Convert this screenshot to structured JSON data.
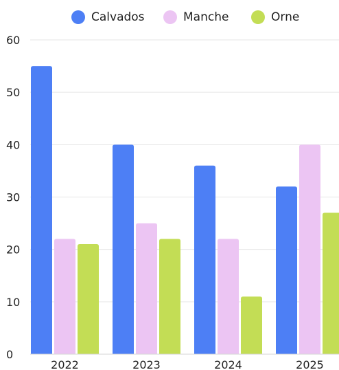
{
  "chart_data": {
    "type": "bar",
    "title": "",
    "xlabel": "",
    "ylabel": "",
    "categories": [
      "2022",
      "2023",
      "2024",
      "2025"
    ],
    "series": [
      {
        "name": "Calvados",
        "values": [
          55,
          40,
          36,
          32
        ],
        "color": "#4d7ff5"
      },
      {
        "name": "Manche",
        "values": [
          22,
          25,
          22,
          40
        ],
        "color": "#ecc5f3"
      },
      {
        "name": "Orne",
        "values": [
          21,
          22,
          11,
          27
        ],
        "color": "#c3dd55"
      }
    ],
    "ylim": [
      0,
      60
    ],
    "yticks": [
      0,
      10,
      20,
      30,
      40,
      50,
      60
    ],
    "grid": true,
    "legend_position": "top-center"
  }
}
